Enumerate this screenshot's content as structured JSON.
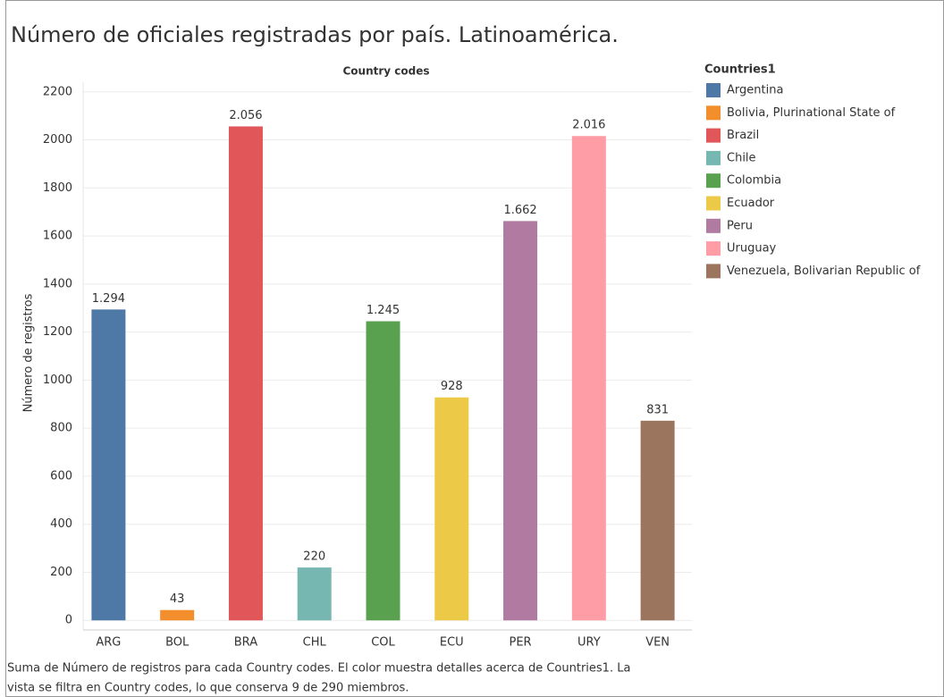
{
  "chart_data": {
    "type": "bar",
    "title": "Número de oficiales registradas por país. Latinoamérica.",
    "x_label": "Country codes",
    "y_label": "Número de registros",
    "categories": [
      "ARG",
      "BOL",
      "BRA",
      "CHL",
      "COL",
      "ECU",
      "PER",
      "URY",
      "VEN"
    ],
    "values": [
      1294,
      43,
      2056,
      220,
      1245,
      928,
      1662,
      2016,
      831
    ],
    "value_labels": [
      "1.294",
      "43",
      "2.056",
      "220",
      "1.245",
      "928",
      "1.662",
      "2.016",
      "831"
    ],
    "colors": [
      "#4e79a7",
      "#f28e2b",
      "#e15759",
      "#76b7b2",
      "#59a14f",
      "#edc948",
      "#b07aa1",
      "#ff9da7",
      "#9c755f"
    ],
    "legend_title": "Countries1",
    "legend_labels": [
      "Argentina",
      "Bolivia, Plurinational State of",
      "Brazil",
      "Chile",
      "Colombia",
      "Ecuador",
      "Peru",
      "Uruguay",
      "Venezuela, Bolivarian Republic of"
    ],
    "ylim": [
      -40,
      2240
    ],
    "yticks": [
      0,
      200,
      400,
      600,
      800,
      1000,
      1200,
      1400,
      1600,
      1800,
      2000,
      2200
    ],
    "grid": true,
    "caption": [
      "Suma de Número de registros para cada Country codes.  El color muestra detalles acerca de Countries1. La",
      "vista se filtra en Country codes, lo que conserva 9 de 290 miembros."
    ]
  }
}
